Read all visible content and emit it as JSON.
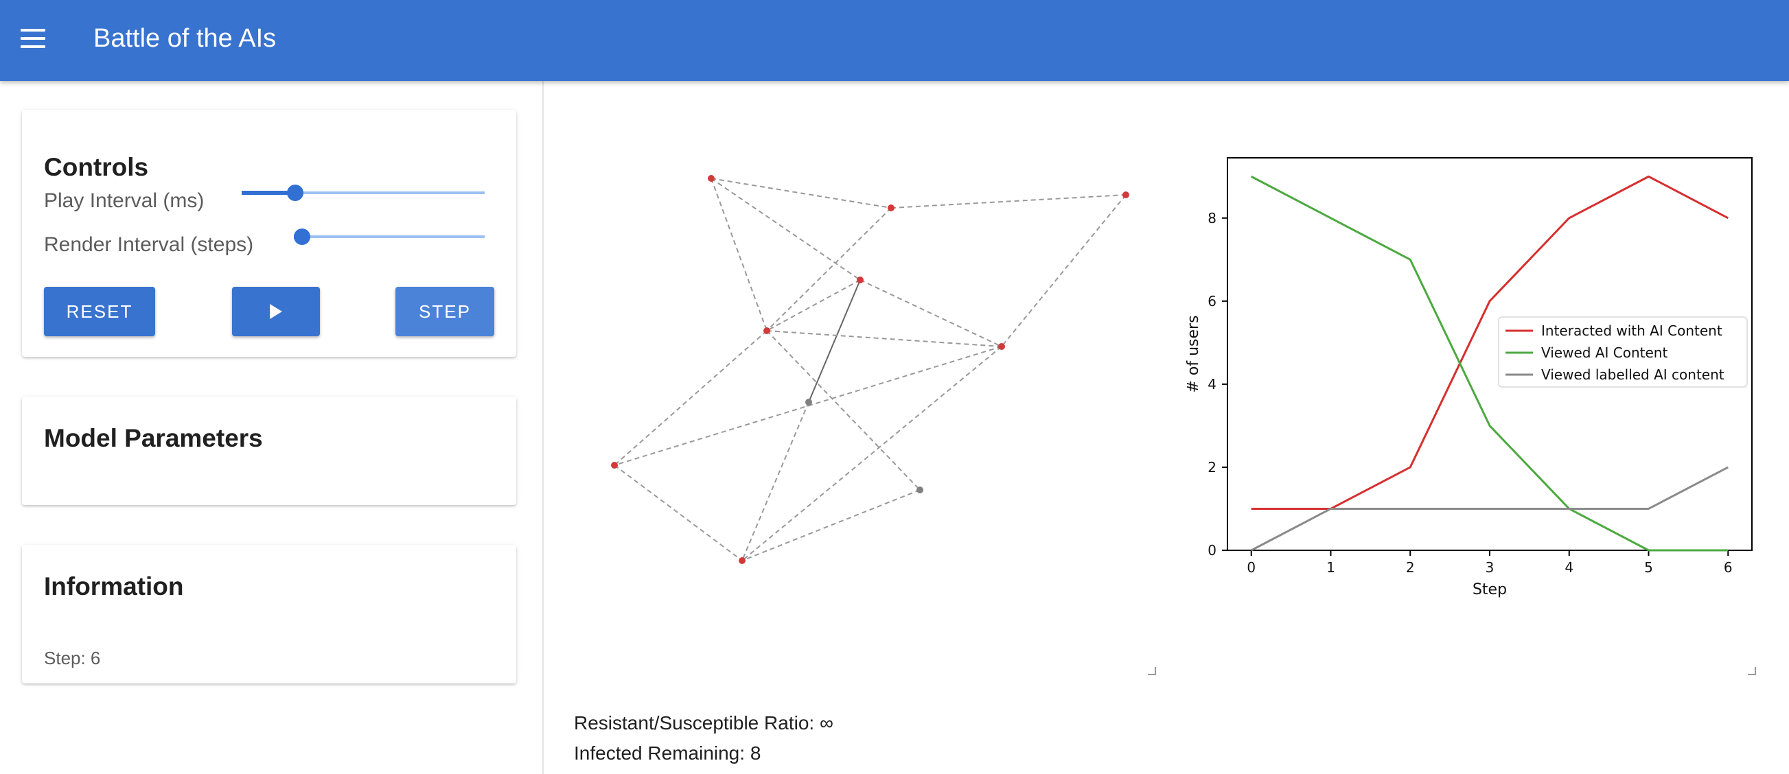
{
  "app": {
    "title": "Battle of the AIs"
  },
  "controls": {
    "title": "Controls",
    "play_interval_label": "Play Interval (ms)",
    "play_interval_value": 0.2,
    "render_interval_label": "Render Interval (steps)",
    "render_interval_value": 0.0,
    "reset_label": "RESET",
    "step_label": "STEP"
  },
  "model_parameters": {
    "title": "Model Parameters"
  },
  "information": {
    "title": "Information",
    "step_text": "Step: 6"
  },
  "stats": {
    "ratio_text": "Resistant/Susceptible Ratio: ∞",
    "infected_text": "Infected Remaining: 8"
  },
  "colors": {
    "appbar": "#3873cf",
    "button": "#3873cf",
    "infected_node": "#d23a3a",
    "other_node": "#808080",
    "edge": "#999999"
  },
  "chart_data": {
    "type": "line",
    "xlabel": "Step",
    "ylabel": "# of users",
    "x": [
      0,
      1,
      2,
      3,
      4,
      5,
      6
    ],
    "xlim": [
      -0.3,
      6.3
    ],
    "ylim": [
      0,
      9.45
    ],
    "xticks": [
      0,
      1,
      2,
      3,
      4,
      5,
      6
    ],
    "yticks": [
      0,
      2,
      4,
      6,
      8
    ],
    "legend_position": "right",
    "series": [
      {
        "name": "Interacted with AI Content",
        "color": "#d62f2f",
        "values": [
          1,
          1,
          2,
          6,
          8,
          9,
          8
        ]
      },
      {
        "name": "Viewed AI Content",
        "color": "#4ca940",
        "values": [
          9,
          8,
          7,
          3,
          1,
          0,
          0
        ]
      },
      {
        "name": "Viewed labelled AI content",
        "color": "#8a8a8a",
        "values": [
          0,
          1,
          1,
          1,
          1,
          1,
          2
        ]
      }
    ]
  }
}
